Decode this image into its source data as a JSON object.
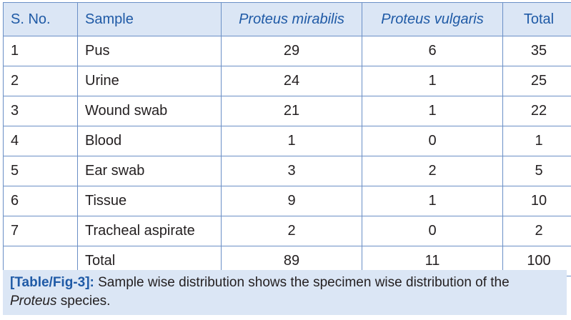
{
  "table": {
    "headers": {
      "sno": "S. No.",
      "sample": "Sample",
      "pm": "Proteus mirabilis",
      "pv": "Proteus vulgaris",
      "total": "Total"
    },
    "rows": [
      {
        "sno": "1",
        "sample": "Pus",
        "pm": "29",
        "pv": "6",
        "total": "35"
      },
      {
        "sno": "2",
        "sample": "Urine",
        "pm": "24",
        "pv": "1",
        "total": "25"
      },
      {
        "sno": "3",
        "sample": "Wound swab",
        "pm": "21",
        "pv": "1",
        "total": "22"
      },
      {
        "sno": "4",
        "sample": "Blood",
        "pm": "1",
        "pv": "0",
        "total": "1"
      },
      {
        "sno": "5",
        "sample": "Ear swab",
        "pm": "3",
        "pv": "2",
        "total": "5"
      },
      {
        "sno": "6",
        "sample": "Tissue",
        "pm": "9",
        "pv": "1",
        "total": "10"
      },
      {
        "sno": "7",
        "sample": "Tracheal aspirate",
        "pm": "2",
        "pv": "0",
        "total": "2"
      }
    ],
    "total_row": {
      "sno": "",
      "sample": "Total",
      "pm": "89",
      "pv": "11",
      "total": "100"
    }
  },
  "caption": {
    "label": "[Table/Fig-3]:",
    "text_before": " Sample wise distribution shows the specimen wise distribution of the ",
    "italic_word": "Proteus",
    "text_after": " species."
  },
  "colors": {
    "header_background": "#dbe6f5",
    "header_text": "#1f5aa6",
    "border": "#6a8fc6",
    "caption_label": "#1f5aa6"
  }
}
